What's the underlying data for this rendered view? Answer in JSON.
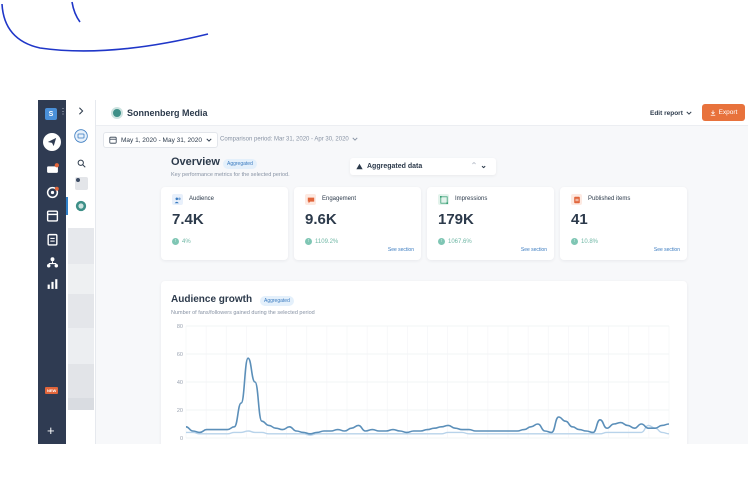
{
  "topbar": {
    "brand_name": "Sonnenberg Media",
    "edit_report_label": "Edit report",
    "export_label": "Export"
  },
  "profile": {
    "initial": "S"
  },
  "nav": {
    "new_badge": "NEW",
    "icons": [
      "compose-icon",
      "inbox-icon",
      "publish-icon",
      "calendar-icon",
      "tasks-icon",
      "team-icon",
      "reports-icon"
    ]
  },
  "filters": {
    "date_range": "May 1, 2020 - May 31, 2020",
    "comparison": "Comparison period: Mar 31, 2020 - Apr 30, 2020"
  },
  "overview": {
    "title": "Overview",
    "badge": "Aggregated",
    "subtitle": "Key performance metrics for the selected period.",
    "view_mode": "Aggregated data",
    "cards": [
      {
        "label": "Audience",
        "value": "7.4K",
        "change": "4%",
        "link": ""
      },
      {
        "label": "Engagement",
        "value": "9.6K",
        "change": "1109.2%",
        "link": "See section"
      },
      {
        "label": "Impressions",
        "value": "179K",
        "change": "1067.6%",
        "link": "See section"
      },
      {
        "label": "Published items",
        "value": "41",
        "change": "10.8%",
        "link": "See section"
      }
    ]
  },
  "audience_growth": {
    "title": "Audience growth",
    "badge": "Aggregated",
    "subtitle": "Number of fans/followers gained during the selected period"
  },
  "colors": {
    "nav_bg": "#2f3b52",
    "accent": "#e8723c",
    "primary_line": "#5b8fb9",
    "secondary_line": "#b8d3ea",
    "positive": "#7fc6b4"
  },
  "chart_data": {
    "type": "line",
    "ylim": [
      0,
      80
    ],
    "y_ticks": [
      "80",
      "60",
      "40",
      "20",
      "0"
    ],
    "grid": true,
    "x": [
      1,
      2,
      3,
      4,
      5,
      6,
      7,
      8,
      9,
      10,
      11,
      12,
      13,
      14,
      15,
      16,
      17,
      18,
      19,
      20,
      21,
      22,
      23,
      24,
      25,
      26,
      27,
      28,
      29,
      30,
      31,
      32,
      33,
      34,
      35,
      36,
      37,
      38,
      39,
      40,
      41,
      42,
      43,
      44,
      45,
      46,
      47,
      48,
      49,
      50,
      51,
      52,
      53,
      54,
      55,
      56,
      57,
      58,
      59,
      60,
      61,
      62,
      63,
      64,
      65,
      66,
      67,
      68,
      69,
      70,
      71
    ],
    "series": [
      {
        "values": [
          8,
          5,
          4,
          6,
          6,
          6,
          6,
          8,
          25,
          57,
          40,
          12,
          9,
          7,
          6,
          8,
          5,
          4,
          3,
          4,
          5,
          5,
          6,
          5,
          7,
          9,
          5,
          6,
          5,
          5,
          6,
          5,
          4,
          5,
          5,
          6,
          7,
          8,
          9,
          7,
          6,
          6,
          5,
          5,
          5,
          5,
          5,
          5,
          5,
          6,
          8,
          10,
          5,
          4,
          15,
          12,
          8,
          6,
          5,
          4,
          13,
          7,
          10,
          11,
          9,
          7,
          10,
          7,
          7,
          9,
          10
        ]
      },
      {
        "values": [
          4,
          4,
          3,
          3,
          3,
          3,
          3,
          4,
          4,
          5,
          4,
          4,
          3,
          3,
          3,
          3,
          3,
          3,
          2,
          3,
          3,
          3,
          3,
          3,
          3,
          3,
          3,
          3,
          3,
          3,
          3,
          3,
          3,
          3,
          3,
          3,
          3,
          3,
          4,
          4,
          4,
          3,
          3,
          3,
          3,
          3,
          3,
          3,
          3,
          3,
          3,
          3,
          3,
          3,
          3,
          3,
          3,
          3,
          3,
          3,
          3,
          4,
          4,
          4,
          4,
          4,
          4,
          9,
          7,
          4,
          3
        ]
      }
    ]
  }
}
